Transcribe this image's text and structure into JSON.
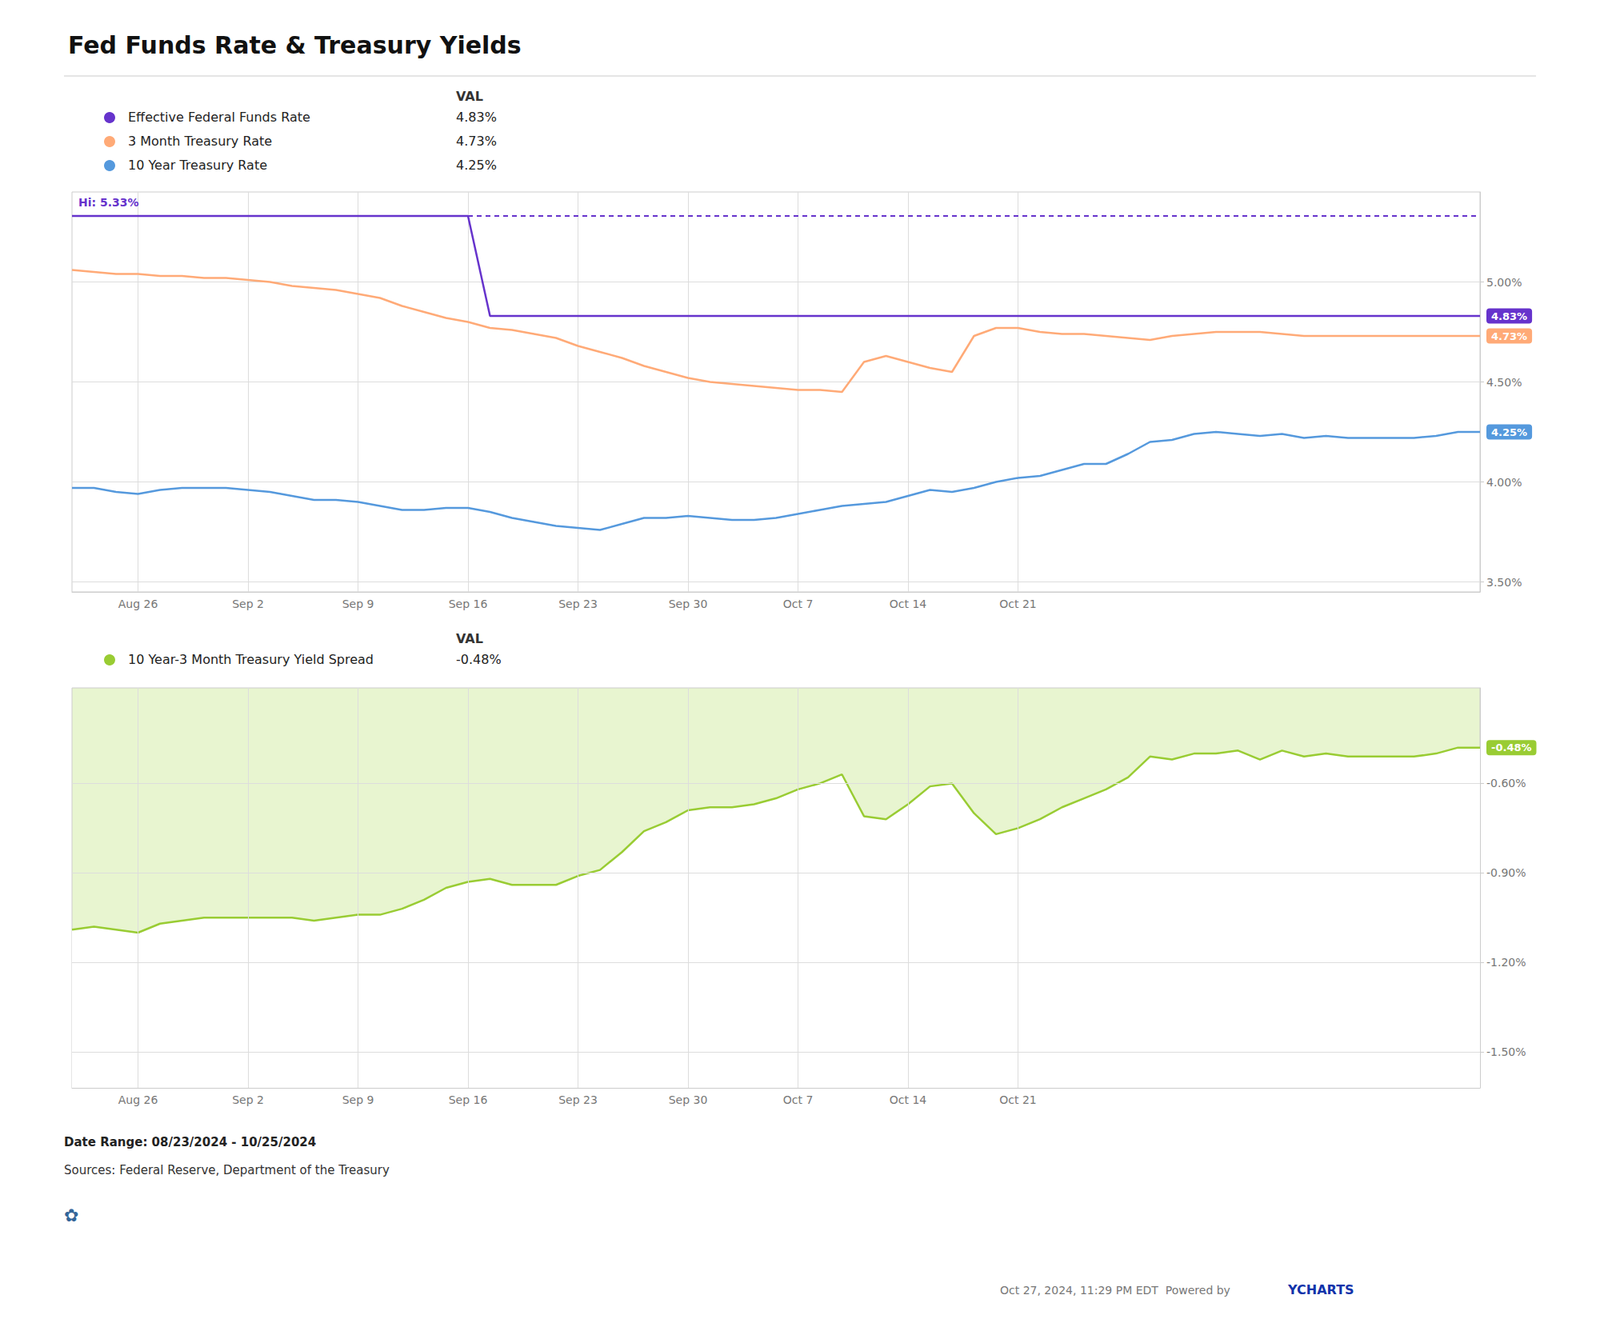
{
  "chart_data": [
    {
      "type": "line",
      "title": "Fed Funds Rate & Treasury Yields",
      "legend_header": "VAL",
      "categories": [
        null,
        null,
        null,
        "Aug 26",
        null,
        null,
        null,
        null,
        "Sep 2",
        null,
        null,
        null,
        null,
        "Sep 9",
        null,
        null,
        null,
        null,
        "Sep 16",
        null,
        null,
        null,
        null,
        "Sep 23",
        null,
        null,
        null,
        null,
        "Sep 30",
        null,
        null,
        null,
        null,
        "Oct 7",
        null,
        null,
        null,
        null,
        "Oct 14",
        null,
        null,
        null,
        null,
        "Oct 21",
        null,
        null,
        null,
        null,
        null,
        null,
        null,
        null,
        null,
        null,
        null,
        null,
        null,
        null,
        null,
        null,
        null,
        null,
        null,
        null,
        null
      ],
      "series": [
        {
          "name": "Effective Federal Funds Rate",
          "color": "#6633cc",
          "last_label": "4.83%",
          "values": [
            5.33,
            5.33,
            5.33,
            5.33,
            5.33,
            5.33,
            5.33,
            5.33,
            5.33,
            5.33,
            5.33,
            5.33,
            5.33,
            5.33,
            5.33,
            5.33,
            5.33,
            5.33,
            5.33,
            4.83,
            4.83,
            4.83,
            4.83,
            4.83,
            4.83,
            4.83,
            4.83,
            4.83,
            4.83,
            4.83,
            4.83,
            4.83,
            4.83,
            4.83,
            4.83,
            4.83,
            4.83,
            4.83,
            4.83,
            4.83,
            4.83,
            4.83,
            4.83,
            4.83,
            4.83,
            4.83,
            4.83,
            4.83,
            4.83,
            4.83,
            4.83,
            4.83,
            4.83,
            4.83,
            4.83,
            4.83,
            4.83,
            4.83,
            4.83,
            4.83,
            4.83,
            4.83,
            4.83,
            4.83,
            4.83
          ]
        },
        {
          "color": "#6633cc",
          "line_style": "dashed",
          "values": [
            null,
            null,
            null,
            null,
            null,
            null,
            null,
            null,
            null,
            null,
            null,
            null,
            null,
            null,
            null,
            null,
            null,
            null,
            5.33,
            5.33,
            5.33,
            5.33,
            5.33,
            5.33,
            5.33,
            5.33,
            5.33,
            5.33,
            5.33,
            5.33,
            5.33,
            5.33,
            5.33,
            5.33,
            5.33,
            5.33,
            5.33,
            5.33,
            5.33,
            5.33,
            5.33,
            5.33,
            5.33,
            5.33,
            5.33,
            5.33,
            5.33,
            5.33,
            5.33,
            5.33,
            5.33,
            5.33,
            5.33,
            5.33,
            5.33,
            5.33,
            5.33,
            5.33,
            5.33,
            5.33,
            5.33,
            5.33,
            5.33,
            5.33,
            5.33
          ]
        },
        {
          "name": "3 Month Treasury Rate",
          "color": "#ffaa77",
          "last_label": "4.73%",
          "values": [
            5.06,
            5.05,
            5.04,
            5.04,
            5.03,
            5.03,
            5.02,
            5.02,
            5.01,
            5.0,
            4.98,
            4.97,
            4.96,
            4.94,
            4.92,
            4.88,
            4.85,
            4.82,
            4.8,
            4.77,
            4.76,
            4.74,
            4.72,
            4.68,
            4.65,
            4.62,
            4.58,
            4.55,
            4.52,
            4.5,
            4.49,
            4.48,
            4.47,
            4.46,
            4.46,
            4.45,
            4.6,
            4.63,
            4.6,
            4.57,
            4.55,
            4.73,
            4.77,
            4.77,
            4.75,
            4.74,
            4.74,
            4.73,
            4.72,
            4.71,
            4.73,
            4.74,
            4.75,
            4.75,
            4.75,
            4.74,
            4.73,
            4.73,
            4.73,
            4.73,
            4.73,
            4.73,
            4.73,
            4.73,
            4.73
          ]
        },
        {
          "name": "10 Year Treasury Rate",
          "color": "#5599dd",
          "last_label": "4.25%",
          "values": [
            3.97,
            3.97,
            3.95,
            3.94,
            3.96,
            3.97,
            3.97,
            3.97,
            3.96,
            3.95,
            3.93,
            3.91,
            3.91,
            3.9,
            3.88,
            3.86,
            3.86,
            3.87,
            3.87,
            3.85,
            3.82,
            3.8,
            3.78,
            3.77,
            3.76,
            3.79,
            3.82,
            3.82,
            3.83,
            3.82,
            3.81,
            3.81,
            3.82,
            3.84,
            3.86,
            3.88,
            3.89,
            3.9,
            3.93,
            3.96,
            3.95,
            3.97,
            4.0,
            4.02,
            4.03,
            4.06,
            4.09,
            4.09,
            4.14,
            4.2,
            4.21,
            4.24,
            4.25,
            4.24,
            4.23,
            4.24,
            4.22,
            4.23,
            4.22,
            4.22,
            4.22,
            4.22,
            4.23,
            4.25,
            4.25
          ]
        }
      ],
      "ylim": [
        3.45,
        5.45
      ],
      "yticks": [
        {
          "value": 3.5,
          "label": "3.50%"
        },
        {
          "value": 4.0,
          "label": "4.00%"
        },
        {
          "value": 4.5,
          "label": "4.50%"
        },
        {
          "value": 5.0,
          "label": "5.00%"
        }
      ],
      "grid": true,
      "annotations": [
        {
          "text": "Hi: 5.33%",
          "color": "#6633cc"
        }
      ]
    },
    {
      "type": "line",
      "legend_header": "VAL",
      "categories": [
        null,
        null,
        null,
        "Aug 26",
        null,
        null,
        null,
        null,
        "Sep 2",
        null,
        null,
        null,
        null,
        "Sep 9",
        null,
        null,
        null,
        null,
        "Sep 16",
        null,
        null,
        null,
        null,
        "Sep 23",
        null,
        null,
        null,
        null,
        "Sep 30",
        null,
        null,
        null,
        null,
        "Oct 7",
        null,
        null,
        null,
        null,
        "Oct 14",
        null,
        null,
        null,
        null,
        "Oct 21",
        null,
        null,
        null,
        null,
        null,
        null,
        null,
        null,
        null,
        null,
        null,
        null,
        null,
        null,
        null,
        null,
        null,
        null,
        null,
        null,
        null
      ],
      "series": [
        {
          "name": "10 Year-3 Month Treasury Yield Spread",
          "color": "#99cc33",
          "fill_color": "#e8f5d0",
          "last_label": "-0.48%",
          "values": [
            -1.09,
            -1.08,
            -1.09,
            -1.1,
            -1.07,
            -1.06,
            -1.05,
            -1.05,
            -1.05,
            -1.05,
            -1.05,
            -1.06,
            -1.05,
            -1.04,
            -1.04,
            -1.02,
            -0.99,
            -0.95,
            -0.93,
            -0.92,
            -0.94,
            -0.94,
            -0.94,
            -0.91,
            -0.89,
            -0.83,
            -0.76,
            -0.73,
            -0.69,
            -0.68,
            -0.68,
            -0.67,
            -0.65,
            -0.62,
            -0.6,
            -0.57,
            -0.71,
            -0.72,
            -0.67,
            -0.61,
            -0.6,
            -0.7,
            -0.77,
            -0.75,
            -0.72,
            -0.68,
            -0.65,
            -0.62,
            -0.58,
            -0.51,
            -0.52,
            -0.5,
            -0.5,
            -0.49,
            -0.52,
            -0.49,
            -0.51,
            -0.5,
            -0.51,
            -0.51,
            -0.51,
            -0.51,
            -0.5,
            -0.48,
            -0.48
          ]
        }
      ],
      "ylim": [
        -1.62,
        -0.28
      ],
      "yticks": [
        {
          "value": -1.5,
          "label": "-1.50%"
        },
        {
          "value": -1.2,
          "label": "-1.20%"
        },
        {
          "value": -0.9,
          "label": "-0.90%"
        },
        {
          "value": -0.6,
          "label": "-0.60%"
        }
      ],
      "grid": true,
      "annotations": [
        {
          "text": "Date Range: 08/23/2024 - 10/25/2024"
        },
        {
          "text": "Sources: Federal Reserve, Department of the Treasury"
        },
        {
          "text": "✿"
        },
        {
          "text": "Oct 27, 2024, 11:29 PM EDT  Powered by "
        },
        {
          "text": "YCHARTS"
        }
      ]
    }
  ]
}
